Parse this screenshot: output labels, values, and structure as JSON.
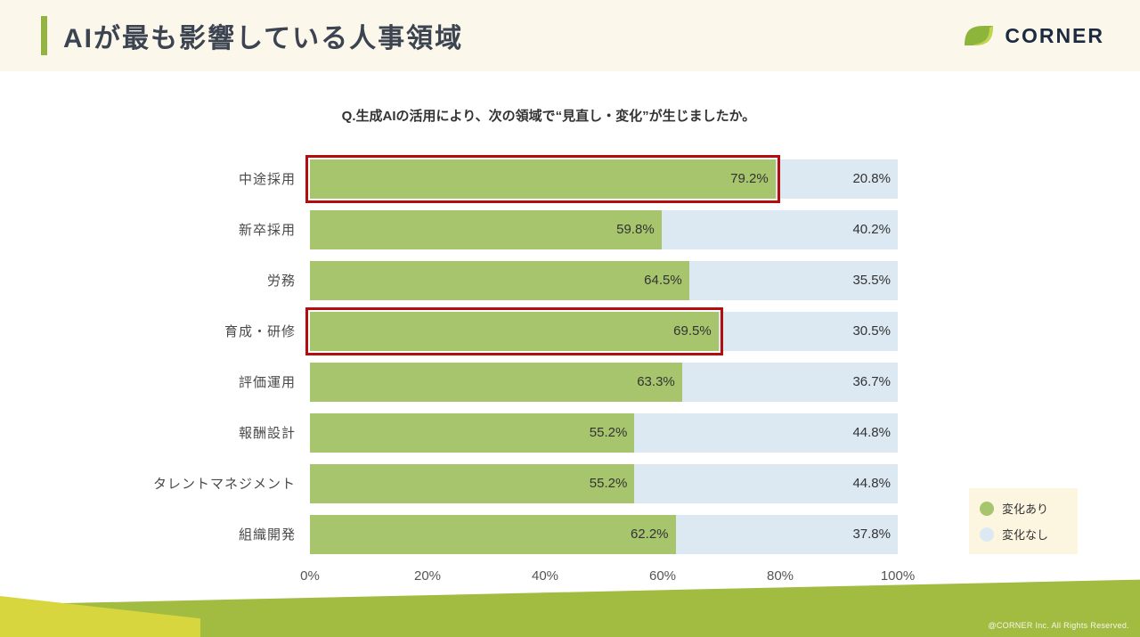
{
  "header": {
    "title": "AIが最も影響している人事領域",
    "logo_text": "CORNER"
  },
  "chart_data": {
    "type": "bar",
    "orientation": "horizontal",
    "stacked": true,
    "title": "Q.生成AIの活用により、次の領域で“見直し・変化”が生じましたか。",
    "categories": [
      "中途採用",
      "新卒採用",
      "労務",
      "育成・研修",
      "評価運用",
      "報酬設計",
      "タレントマネジメント",
      "組織開発"
    ],
    "series": [
      {
        "name": "変化あり",
        "color": "#a6c56d",
        "values": [
          79.2,
          59.8,
          64.5,
          69.5,
          63.3,
          55.2,
          55.2,
          62.2
        ]
      },
      {
        "name": "変化なし",
        "color": "#dde9f2",
        "values": [
          20.8,
          40.2,
          35.5,
          30.5,
          36.7,
          44.8,
          44.8,
          37.8
        ]
      }
    ],
    "highlighted_categories": [
      "中途採用",
      "育成・研修"
    ],
    "highlight_color": "#b50d0d",
    "x_ticks": [
      "0%",
      "20%",
      "40%",
      "60%",
      "80%",
      "100%"
    ],
    "xlim": [
      0,
      100
    ],
    "grid": false,
    "legend_position": "bottom-right"
  },
  "footer": {
    "copyright": "@CORNER Inc. All Rights Reserved."
  },
  "colors": {
    "header_background": "#fcf7eb",
    "accent_green": "#93b442",
    "footer_green": "#a2bb41",
    "footer_lime": "#d7d63f",
    "legend_background": "#fcf5e0"
  }
}
